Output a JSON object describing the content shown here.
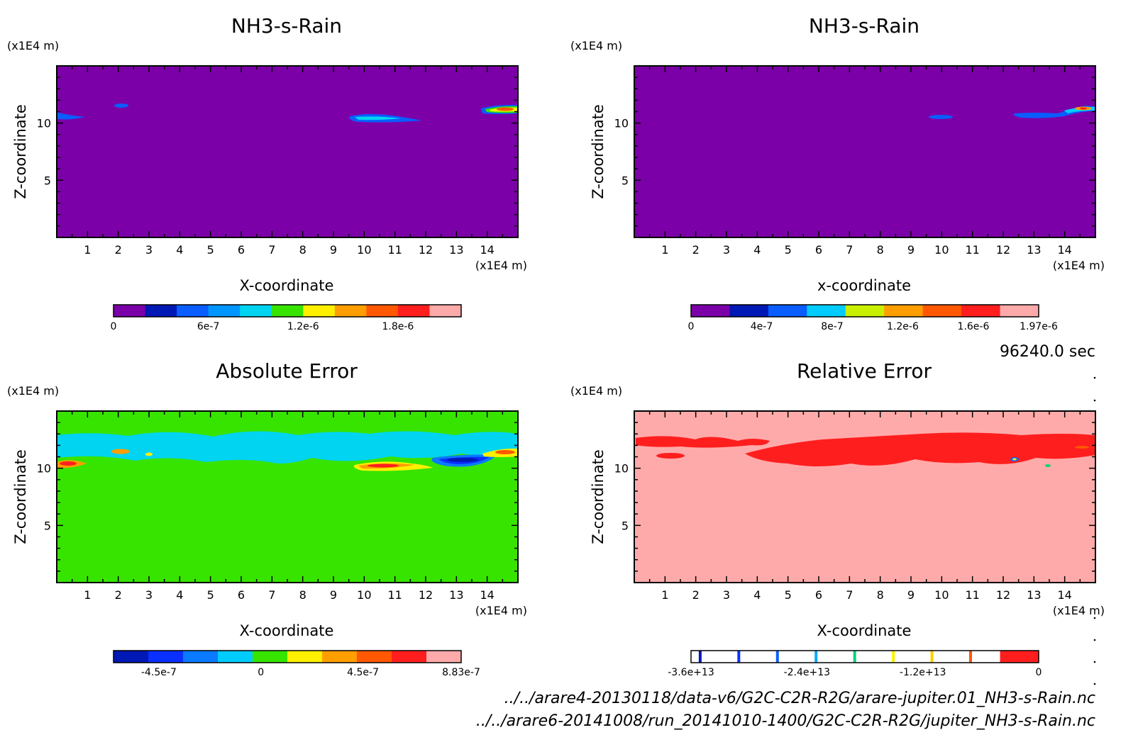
{
  "chart_data": [
    {
      "type": "heatmap",
      "title": "NH3-s-Rain",
      "xlabel": "X-coordinate",
      "ylabel": "Z-coordinate",
      "axis_unit": "(x1E4 m)",
      "xlim": [
        0,
        15
      ],
      "ylim": [
        0,
        15
      ],
      "xticks": [
        "1",
        "2",
        "3",
        "4",
        "5",
        "6",
        "7",
        "8",
        "9",
        "10",
        "11",
        "12",
        "13",
        "14"
      ],
      "yticks": [
        "5",
        "10"
      ],
      "background": "#7c00a8",
      "colorbar": {
        "colors": [
          "#7c00a8",
          "#0018b4",
          "#0a5dff",
          "#0096ff",
          "#00d4f0",
          "#37e400",
          "#fff000",
          "#ff9e00",
          "#ff5800",
          "#ff1e1e",
          "#ffaaaa"
        ],
        "tick_labels": [
          "0",
          "6e-7",
          "1.2e-6",
          "1.8e-6"
        ],
        "tick_values": [
          0,
          6e-07,
          1.2e-06,
          1.8e-06
        ],
        "range": [
          0,
          2.2e-06
        ]
      },
      "features": [
        {
          "x": 0.2,
          "z": 10.4,
          "value": 4e-07
        },
        {
          "x": 2.2,
          "z": 11.4,
          "value": 4e-07
        },
        {
          "x": 10.6,
          "z": 10.3,
          "value": 6e-07
        },
        {
          "x": 14.5,
          "z": 11.2,
          "value": 1.8e-06
        }
      ]
    },
    {
      "type": "heatmap",
      "title": "NH3-s-Rain",
      "xlabel": "x-coordinate",
      "ylabel": "Z-coordinate",
      "axis_unit": "(x1E4 m)",
      "xlim": [
        0,
        15
      ],
      "ylim": [
        0,
        15
      ],
      "xticks": [
        "1",
        "2",
        "3",
        "4",
        "5",
        "6",
        "7",
        "8",
        "9",
        "10",
        "11",
        "12",
        "13",
        "14"
      ],
      "yticks": [
        "5",
        "10"
      ],
      "background": "#7c00a8",
      "colorbar": {
        "colors": [
          "#7c00a8",
          "#0018b4",
          "#0a5dff",
          "#00ccff",
          "#c8f000",
          "#ff9e00",
          "#ff5800",
          "#ff1e1e",
          "#ffaaaa"
        ],
        "tick_labels": [
          "0",
          "4e-7",
          "8e-7",
          "1.2e-6",
          "1.6e-6",
          "1.97e-6"
        ],
        "tick_values": [
          0,
          4e-07,
          8e-07,
          1.2e-06,
          1.6e-06,
          1.97e-06
        ],
        "range": [
          0,
          1.97e-06
        ]
      },
      "features": [
        {
          "x": 9.9,
          "z": 10.3,
          "value": 5e-07
        },
        {
          "x": 13.6,
          "z": 10.8,
          "value": 1e-06
        },
        {
          "x": 14.4,
          "z": 11.1,
          "value": 1.8e-06
        }
      ]
    },
    {
      "type": "heatmap",
      "title": "Absolute Error",
      "xlabel": "X-coordinate",
      "ylabel": "Z-coordinate",
      "axis_unit": "(x1E4 m)",
      "xlim": [
        0,
        15
      ],
      "ylim": [
        0,
        15
      ],
      "xticks": [
        "1",
        "2",
        "3",
        "4",
        "5",
        "6",
        "7",
        "8",
        "9",
        "10",
        "11",
        "12",
        "13",
        "14"
      ],
      "yticks": [
        "5",
        "10"
      ],
      "background": "#37e400",
      "colorbar": {
        "colors": [
          "#0018b4",
          "#0a30ff",
          "#0a7aff",
          "#00ccff",
          "#37e400",
          "#fff000",
          "#ff9e00",
          "#ff5800",
          "#ff1e1e",
          "#ffaaaa"
        ],
        "tick_labels": [
          "-4.5e-7",
          "0",
          "4.5e-7",
          "8.83e-7"
        ],
        "tick_values": [
          -4.5e-07,
          0,
          4.5e-07,
          8.83e-07
        ],
        "range": [
          -6.5e-07,
          8.83e-07
        ]
      },
      "features": [
        {
          "x": 0.5,
          "z": 10.4,
          "value": 6e-07
        },
        {
          "x": 2.0,
          "z": 11.4,
          "value": 3e-07
        },
        {
          "x": 10.6,
          "z": 10.3,
          "value": 6e-07
        },
        {
          "x": 13.0,
          "z": 10.6,
          "value": -4.5e-07
        },
        {
          "x": 14.5,
          "z": 11.2,
          "value": 3e-07
        }
      ]
    },
    {
      "type": "heatmap",
      "title": "Relative Error",
      "xlabel": "X-coordinate",
      "ylabel": "Z-coordinate",
      "axis_unit": "(x1E4 m)",
      "xlim": [
        0,
        15
      ],
      "ylim": [
        0,
        15
      ],
      "xticks": [
        "1",
        "2",
        "3",
        "4",
        "5",
        "6",
        "7",
        "8",
        "9",
        "10",
        "11",
        "12",
        "13",
        "14"
      ],
      "yticks": [
        "5",
        "10"
      ],
      "background": "#ffaaaa",
      "colorbar": {
        "colors": [
          "#0018b4",
          "#0a30ff",
          "#0a60ff",
          "#00aaff",
          "#00d47a",
          "#fff000",
          "#ffd000",
          "#ff5800",
          "#ff1e1e"
        ],
        "tick_labels": [
          "-3.6e+13",
          "-2.4e+13",
          "-1.2e+13",
          "0"
        ],
        "tick_values": [
          -36000000000000.0,
          -24000000000000.0,
          -12000000000000.0,
          0
        ],
        "range": [
          -36000000000000.0,
          0
        ]
      },
      "features": [
        {
          "x": 12.2,
          "z": 10.4,
          "value": -10000000000000.0
        },
        {
          "x": 13.4,
          "z": 10.0,
          "value": -20000000000000.0
        }
      ]
    }
  ],
  "time_label": "96240.0 sec",
  "files": [
    "../../arare4-20130118/data-v6/G2C-C2R-R2G/arare-jupiter.01_NH3-s-Rain.nc",
    "../../arare6-20141008/run_20141010-1400/G2C-C2R-R2G/jupiter_NH3-s-Rain.nc"
  ]
}
